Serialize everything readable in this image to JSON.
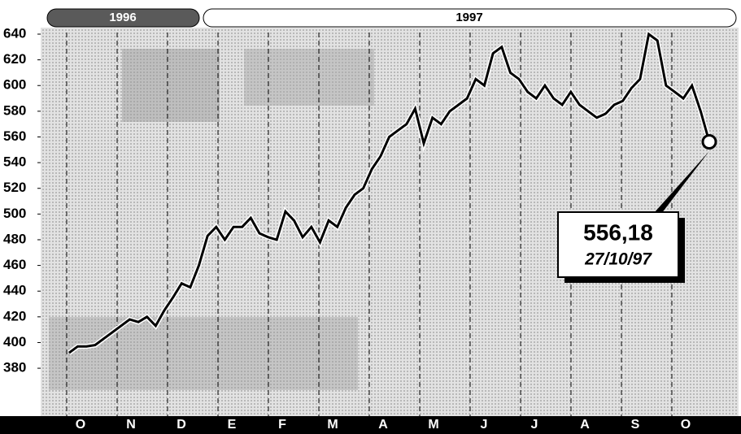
{
  "chart_data": {
    "type": "line",
    "year_labels": [
      "1996",
      "1997"
    ],
    "month_labels": [
      "O",
      "N",
      "D",
      "E",
      "F",
      "M",
      "A",
      "M",
      "J",
      "J",
      "A",
      "S",
      "O"
    ],
    "values": [
      392,
      397,
      397,
      398,
      403,
      408,
      413,
      418,
      416,
      420,
      413,
      425,
      435,
      446,
      443,
      460,
      483,
      490,
      480,
      490,
      490,
      497,
      485,
      482,
      480,
      502,
      495,
      482,
      490,
      478,
      495,
      490,
      505,
      515,
      520,
      535,
      545,
      560,
      565,
      570,
      582,
      555,
      575,
      570,
      580,
      585,
      590,
      605,
      600,
      625,
      630,
      610,
      605,
      595,
      590,
      600,
      590,
      585,
      595,
      585,
      580,
      575,
      578,
      585,
      588,
      598,
      605,
      640,
      635,
      600,
      595,
      590,
      600,
      580,
      556.18
    ],
    "color": "#000000",
    "ylim": [
      344,
      640
    ],
    "yticks": [
      380,
      400,
      420,
      440,
      460,
      480,
      500,
      520,
      540,
      560,
      580,
      600,
      620,
      640
    ],
    "annotation": {
      "value": 556.18,
      "label": "556,18",
      "date": "27/10/97"
    }
  }
}
